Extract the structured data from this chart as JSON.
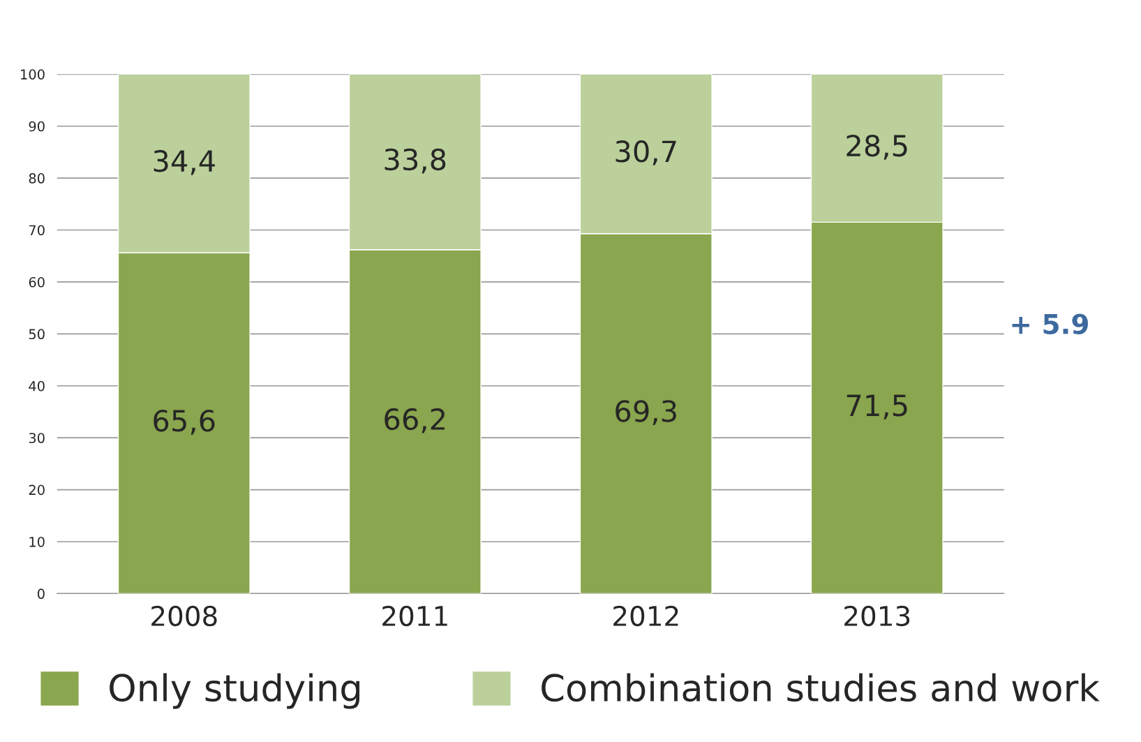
{
  "chart_data": {
    "type": "bar",
    "stacked": true,
    "categories": [
      "2008",
      "2011",
      "2012",
      "2013"
    ],
    "series": [
      {
        "name": "Only studying",
        "color": "#8aa64e",
        "values": [
          65.6,
          66.2,
          69.3,
          71.5
        ],
        "value_labels": [
          "65,6",
          "66,2",
          "69,3",
          "71,5"
        ]
      },
      {
        "name": "Combination studies and work",
        "color": "#bbd09a",
        "values": [
          34.4,
          33.8,
          30.7,
          28.5
        ],
        "value_labels": [
          "34,4",
          "33,8",
          "30,7",
          "28,5"
        ]
      }
    ],
    "ylim": [
      0,
      100
    ],
    "yticks": [
      0,
      10,
      20,
      30,
      40,
      50,
      60,
      70,
      80,
      90,
      100
    ],
    "grid": "y",
    "legend": "bottom",
    "annotations": [
      "+ 5.9"
    ]
  }
}
